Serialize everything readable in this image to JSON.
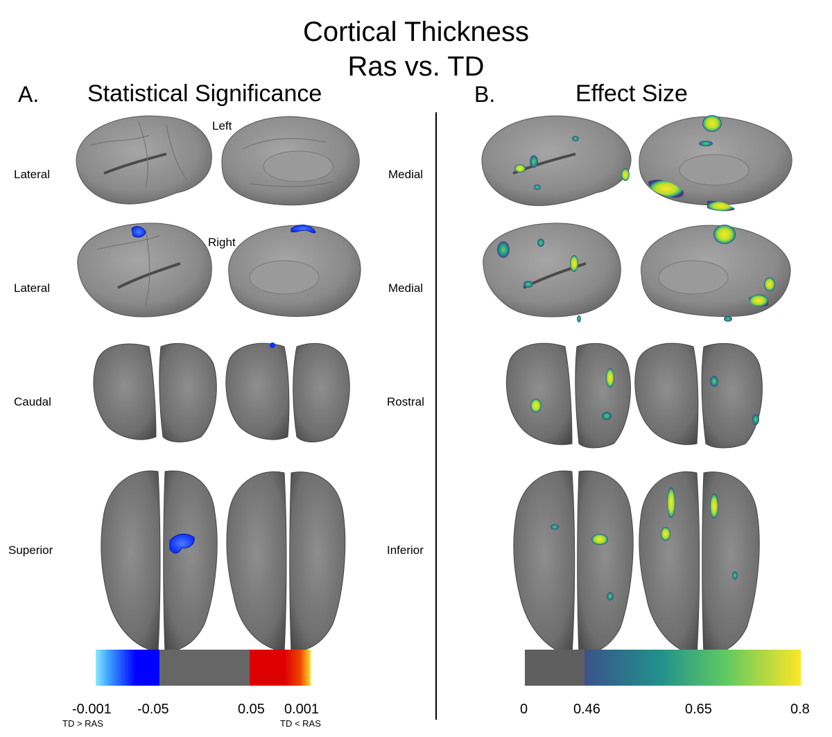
{
  "title": {
    "line1": "Cortical Thickness",
    "line2": "Ras vs. TD"
  },
  "panel_a": {
    "letter": "A.",
    "title": "Statistical Significance"
  },
  "panel_b": {
    "letter": "B.",
    "title": "Effect Size"
  },
  "hemisphere_labels": {
    "left": "Left",
    "right": "Right"
  },
  "view_labels_a": [
    "Lateral",
    "Lateral",
    "Caudal",
    "Superior"
  ],
  "view_labels_b": [
    "Medial",
    "Medial",
    "Rostral",
    "Inferior"
  ],
  "colorbar_a": {
    "ticks": [
      "-0.001",
      "-0.05",
      "0.05",
      "0.001"
    ],
    "sub_left": "TD > RAS",
    "sub_right": "TD < RAS",
    "colors": {
      "light_blue": "#7fe3ff",
      "blue": "#0000ff",
      "gray": "#666666",
      "red": "#dd0000",
      "yellow": "#ffdd33"
    }
  },
  "colorbar_b": {
    "ticks": [
      "0",
      "0.46",
      "0.65",
      "0.8"
    ],
    "colors": {
      "gray": "#5f5f5f",
      "dark": "#3b528b",
      "mid": "#21918c",
      "light": "#5ec962",
      "yellow": "#fde725"
    }
  }
}
